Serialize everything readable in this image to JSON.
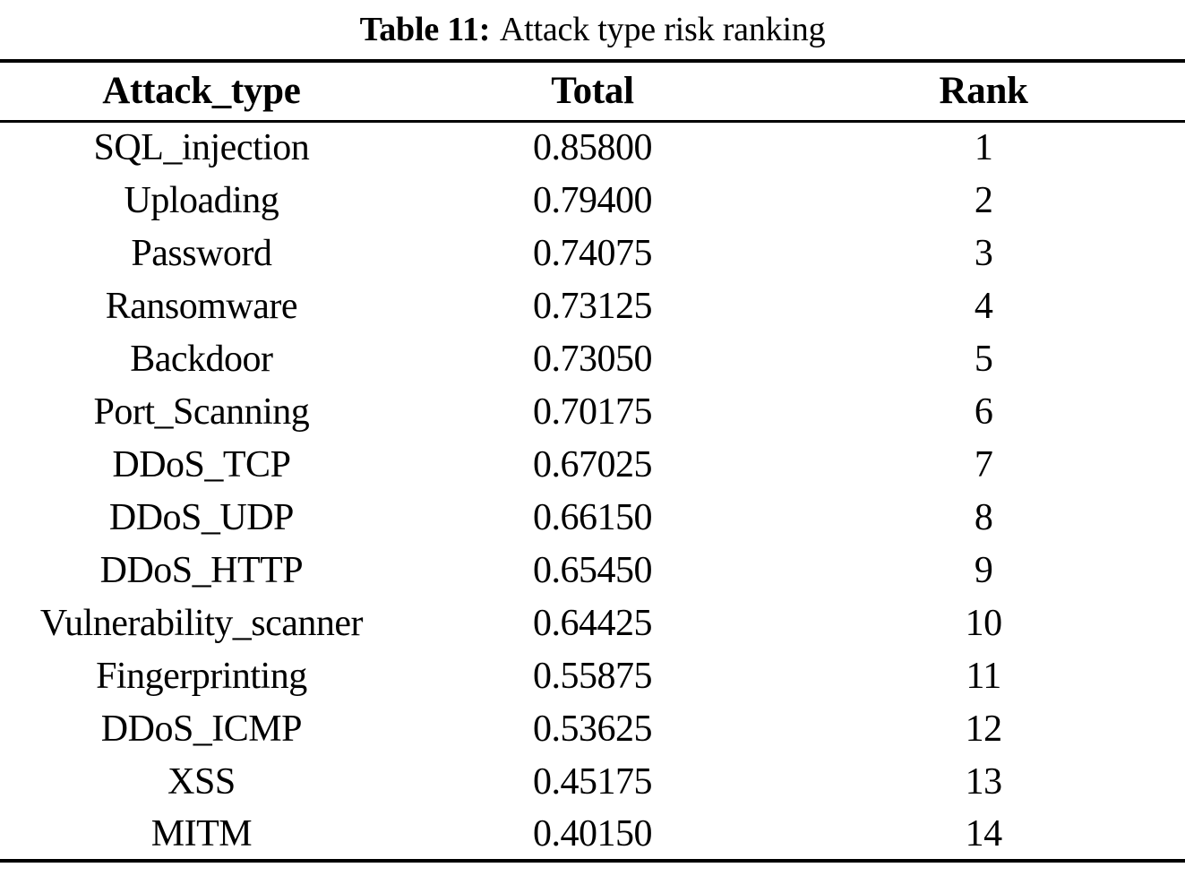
{
  "caption": {
    "label": "Table 11:",
    "text": "Attack type risk ranking"
  },
  "table": {
    "columns": [
      "Attack_type",
      "Total",
      "Rank"
    ],
    "rows": [
      {
        "attack_type": "SQL_injection",
        "total": "0.85800",
        "rank": "1"
      },
      {
        "attack_type": "Uploading",
        "total": "0.79400",
        "rank": "2"
      },
      {
        "attack_type": "Password",
        "total": "0.74075",
        "rank": "3"
      },
      {
        "attack_type": "Ransomware",
        "total": "0.73125",
        "rank": "4"
      },
      {
        "attack_type": "Backdoor",
        "total": "0.73050",
        "rank": "5"
      },
      {
        "attack_type": "Port_Scanning",
        "total": "0.70175",
        "rank": "6"
      },
      {
        "attack_type": "DDoS_TCP",
        "total": "0.67025",
        "rank": "7"
      },
      {
        "attack_type": "DDoS_UDP",
        "total": "0.66150",
        "rank": "8"
      },
      {
        "attack_type": "DDoS_HTTP",
        "total": "0.65450",
        "rank": "9"
      },
      {
        "attack_type": "Vulnerability_scanner",
        "total": "0.64425",
        "rank": "10"
      },
      {
        "attack_type": "Fingerprinting",
        "total": "0.55875",
        "rank": "11"
      },
      {
        "attack_type": "DDoS_ICMP",
        "total": "0.53625",
        "rank": "12"
      },
      {
        "attack_type": "XSS",
        "total": "0.45175",
        "rank": "13"
      },
      {
        "attack_type": "MITM",
        "total": "0.40150",
        "rank": "14"
      }
    ]
  },
  "colors": {
    "text": "#000000",
    "background": "#ffffff",
    "rule": "#000000"
  }
}
